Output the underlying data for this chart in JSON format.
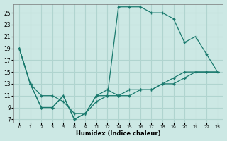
{
  "xlabel": "Humidex (Indice chaleur)",
  "bg_color": "#cce8e4",
  "grid_color": "#b0d4cf",
  "line_color": "#1a7a6e",
  "x_labels": [
    "0",
    "1",
    "2",
    "3",
    "5",
    "8",
    "9",
    "11",
    "12",
    "14",
    "15",
    "16",
    "17",
    "18",
    "19",
    "20",
    "21",
    "22",
    "23"
  ],
  "series1_y": [
    19,
    13,
    11,
    11,
    10,
    8,
    8,
    11,
    11,
    11,
    11,
    12,
    12,
    13,
    13,
    14,
    15,
    15,
    15
  ],
  "series2_y": [
    19,
    13,
    9,
    9,
    11,
    7,
    8,
    10,
    11,
    26,
    26,
    26,
    25,
    25,
    24,
    20,
    21,
    18,
    15
  ],
  "series3_y": [
    19,
    13,
    9,
    9,
    11,
    7,
    8,
    11,
    12,
    11,
    12,
    12,
    12,
    13,
    14,
    15,
    15,
    15,
    15
  ],
  "ylim": [
    6.5,
    26.5
  ],
  "yticks": [
    7,
    9,
    11,
    13,
    15,
    17,
    19,
    21,
    23,
    25
  ]
}
